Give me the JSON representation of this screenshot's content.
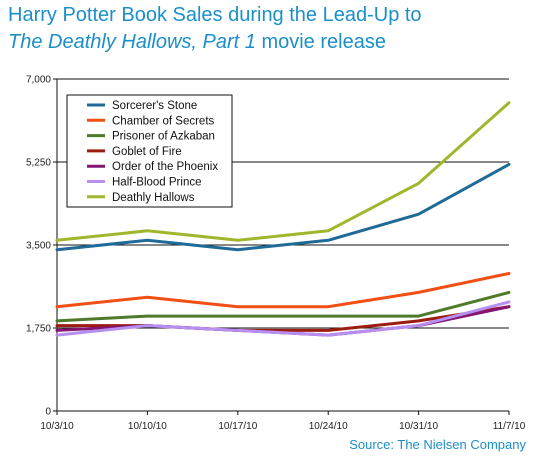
{
  "title": {
    "line1": "Harry Potter Book Sales during the Lead-Up to",
    "line2_italic": "The Deathly Hallows, Part 1",
    "line2_rest": " movie release"
  },
  "source": "Source: The Nielsen Company",
  "chart_data": {
    "type": "line",
    "categories": [
      "10/3/10",
      "10/10/10",
      "10/17/10",
      "10/24/10",
      "10/31/10",
      "11/7/10"
    ],
    "ylim": [
      0,
      7000
    ],
    "yticks": [
      0,
      1750,
      3500,
      5250,
      7000
    ],
    "ytick_labels": [
      "0",
      "1,750",
      "3,500",
      "5,250",
      "7,000"
    ],
    "grid": "horizontal",
    "legend_position": "top-left",
    "series": [
      {
        "name": "Sorcerer's Stone",
        "color": "#1f6a96",
        "values": [
          3400,
          3600,
          3400,
          3600,
          4150,
          5200
        ]
      },
      {
        "name": "Chamber of Secrets",
        "color": "#f24f14",
        "values": [
          2200,
          2400,
          2200,
          2200,
          2500,
          2900
        ]
      },
      {
        "name": "Prisoner of Azkaban",
        "color": "#4e7a2a",
        "values": [
          1900,
          2000,
          2000,
          2000,
          2000,
          2500
        ]
      },
      {
        "name": "Goblet of Fire",
        "color": "#9c1c10",
        "values": [
          1800,
          1800,
          1700,
          1700,
          1900,
          2200
        ]
      },
      {
        "name": "Order of the Phoenix",
        "color": "#83166e",
        "values": [
          1700,
          1800,
          1700,
          1600,
          1800,
          2200
        ]
      },
      {
        "name": "Half-Blood Prince",
        "color": "#b68ff0",
        "values": [
          1600,
          1800,
          1700,
          1600,
          1800,
          2300
        ]
      },
      {
        "name": "Deathly Hallows",
        "color": "#a2b62d",
        "values": [
          3600,
          3800,
          3600,
          3800,
          4800,
          6500
        ]
      }
    ]
  }
}
